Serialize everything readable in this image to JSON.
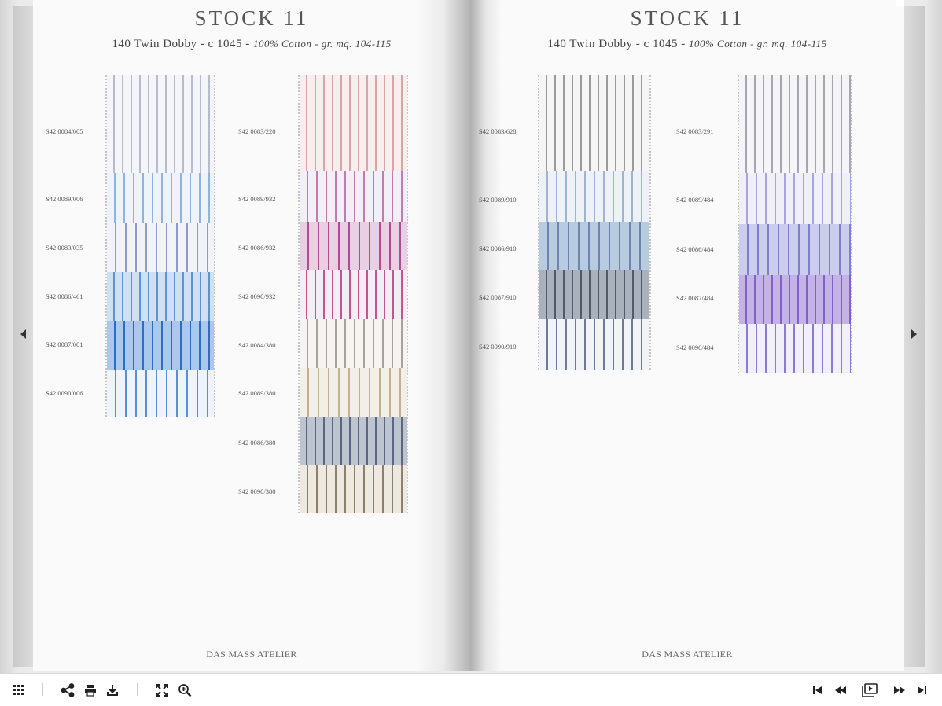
{
  "spread": {
    "left_page": {
      "title": "STOCK 11",
      "subtitle_main": "140 Twin Dobby - c 1045 - ",
      "subtitle_italic": "100% Cotton - gr. mq. 104-115",
      "footer": "DAS MASS ATELIER",
      "columns": [
        {
          "swatches": [
            {
              "code": "S42 0084/005",
              "bg": "#f4f5f8",
              "stripe": "#b6bccb"
            },
            {
              "code": "S42 0089/006",
              "bg": "#eef3fa",
              "stripe": "#8fb3de"
            },
            {
              "code": "S42 0083/035",
              "bg": "#f1f3f8",
              "stripe": "#8e9cc4"
            },
            {
              "code": "S42 0086/461",
              "bg": "#cfe0f2",
              "stripe": "#5e93d0"
            },
            {
              "code": "S42 0087/001",
              "bg": "#a9c8ec",
              "stripe": "#2e6dc4"
            },
            {
              "code": "S42 0090/006",
              "bg": "#f0f4fa",
              "stripe": "#5a8fd6"
            }
          ]
        },
        {
          "swatches": [
            {
              "code": "S42 0083/220",
              "bg": "#f7eeed",
              "stripe": "#d6a5a8"
            },
            {
              "code": "S42 0089/932",
              "bg": "#f2eff6",
              "stripe": "#c07cb0"
            },
            {
              "code": "S42 0086/932",
              "bg": "#e9cfe2",
              "stripe": "#b24b95"
            },
            {
              "code": "S42 0090/932",
              "bg": "#f3eef5",
              "stripe": "#c5548e"
            },
            {
              "code": "S42 0084/380",
              "bg": "#f5f4f1",
              "stripe": "#a6a49a"
            },
            {
              "code": "S42 0089/380",
              "bg": "#f2efe8",
              "stripe": "#c4b08f"
            },
            {
              "code": "S42 0086/380",
              "bg": "#bcc4cf",
              "stripe": "#5b6782"
            },
            {
              "code": "S42 0090/380",
              "bg": "#eee9e0",
              "stripe": "#8d7f6e"
            }
          ]
        }
      ]
    },
    "right_page": {
      "title": "STOCK 11",
      "subtitle_main": "140 Twin Dobby - c 1045 - ",
      "subtitle_italic": "100% Cotton - gr. mq. 104-115",
      "footer": "DAS MASS ATELIER",
      "columns": [
        {
          "swatches": [
            {
              "code": "S42 0083/628",
              "bg": "#f5f5f5",
              "stripe": "#9a9a9a"
            },
            {
              "code": "S42 0089/910",
              "bg": "#eef2f7",
              "stripe": "#9db4d3"
            },
            {
              "code": "S42 0086/910",
              "bg": "#b9cbe0",
              "stripe": "#6c86ab"
            },
            {
              "code": "S42 0087/910",
              "bg": "#a9b1bc",
              "stripe": "#4f5a6a"
            },
            {
              "code": "S42 0090/910",
              "bg": "#f1f3f6",
              "stripe": "#6c7a95"
            }
          ]
        },
        {
          "swatches": [
            {
              "code": "S42 0083/291",
              "bg": "#f5f4f6",
              "stripe": "#a8a4b0"
            },
            {
              "code": "S42 0089/484",
              "bg": "#f0eff8",
              "stripe": "#a6a6dc"
            },
            {
              "code": "S42 0086/484",
              "bg": "#cccdec",
              "stripe": "#7c7fcc"
            },
            {
              "code": "S42 0087/484",
              "bg": "#c4b3e6",
              "stripe": "#8460c9"
            },
            {
              "code": "S42 0090/484",
              "bg": "#f1eff8",
              "stripe": "#8f7ad3"
            }
          ]
        }
      ]
    }
  },
  "toolbar": {
    "left_buttons": [
      "thumbnails-icon",
      "share-icon",
      "print-icon",
      "download-icon",
      "fullscreen-icon",
      "zoom-in-icon"
    ],
    "right_buttons": [
      "first-page-icon",
      "previous-page-icon",
      "slideshow-icon",
      "next-page-icon",
      "last-page-icon"
    ]
  },
  "navigation": {
    "prev_icon": "caret-left-icon",
    "next_icon": "caret-right-icon"
  }
}
